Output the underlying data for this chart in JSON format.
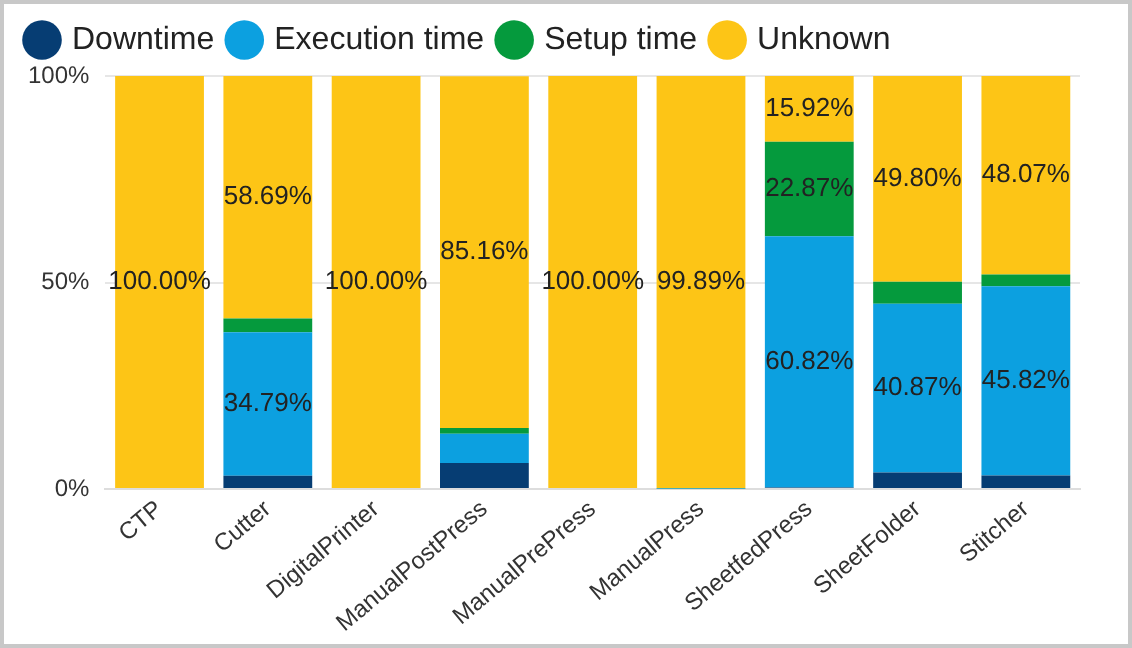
{
  "chart_data": {
    "type": "bar",
    "stacked": true,
    "categories": [
      "CTP",
      "Cutter",
      "DigitalPrinter",
      "ManualPostPress",
      "ManualPrePress",
      "ManualPress",
      "SheetfedPress",
      "SheetFolder",
      "Stitcher"
    ],
    "series": [
      {
        "name": "Downtime",
        "color": "#063d73",
        "values": [
          0,
          3.2,
          0,
          6.3,
          0,
          0,
          0.4,
          4.0,
          3.3
        ],
        "value_labels": [
          null,
          null,
          null,
          null,
          null,
          null,
          null,
          null,
          null
        ]
      },
      {
        "name": "Execution time",
        "color": "#0ca0e0",
        "values": [
          0,
          34.79,
          0,
          7.1,
          0,
          0.1,
          60.82,
          40.87,
          45.82
        ],
        "value_labels": [
          null,
          "34.79%",
          null,
          null,
          null,
          null,
          "60.82%",
          "40.87%",
          "45.82%"
        ]
      },
      {
        "name": "Setup time",
        "color": "#059a3d",
        "values": [
          0,
          3.3,
          0,
          1.4,
          0,
          0,
          22.87,
          5.3,
          2.8
        ],
        "value_labels": [
          null,
          null,
          null,
          null,
          null,
          null,
          "22.87%",
          null,
          null
        ]
      },
      {
        "name": "Unknown",
        "color": "#fdc516",
        "values": [
          100,
          58.69,
          100,
          85.16,
          100,
          99.89,
          15.92,
          49.8,
          48.07
        ],
        "value_labels": [
          "100.00%",
          "58.69%",
          "100.00%",
          "85.16%",
          "100.00%",
          "99.89%",
          "15.92%",
          "49.80%",
          "48.07%"
        ]
      }
    ],
    "ylim": [
      0,
      100
    ],
    "yticks": [
      {
        "value": 0,
        "label": "0%"
      },
      {
        "value": 50,
        "label": "50%"
      },
      {
        "value": 100,
        "label": "100%"
      }
    ],
    "grid": "y",
    "legend": "top left",
    "marker": "circle"
  }
}
